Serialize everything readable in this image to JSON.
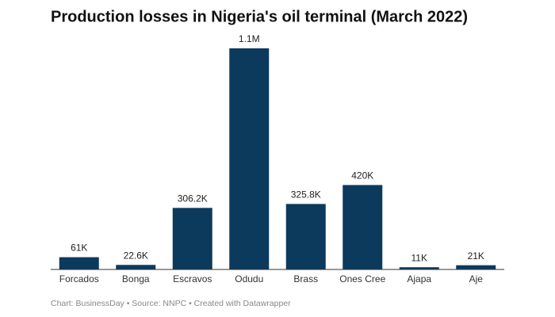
{
  "chart_data": {
    "type": "bar",
    "title": "Production losses in Nigeria's oil terminal (March 2022)",
    "categories": [
      "Forcados",
      "Bonga",
      "Escravos",
      "Odudu",
      "Brass",
      "Ones Cree",
      "Ajapa",
      "Aje"
    ],
    "values": [
      61000,
      22600,
      306200,
      1100000,
      325800,
      420000,
      11000,
      21000
    ],
    "value_labels": [
      "61K",
      "22.6K",
      "306.2K",
      "1.1M",
      "325.8K",
      "420K",
      "11K",
      "21K"
    ],
    "color": "#0c3a5d",
    "source": "Chart: BusinessDay • Source: NNPC • Created with Datawrapper"
  }
}
